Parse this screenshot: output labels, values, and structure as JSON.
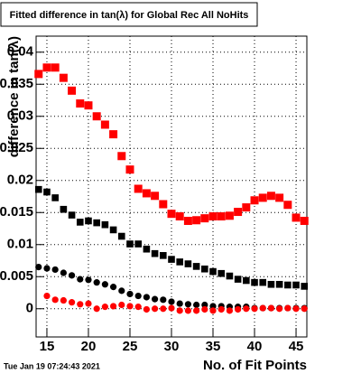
{
  "chart_data": {
    "type": "scatter",
    "title": "Fitted difference in tan(λ) for Global Rec All NoHits",
    "x_label": "No. of Fit Points",
    "y_label": "difference in tan(λ)",
    "footer": "Tue Jan 19 07:24:43 2021",
    "xlim": [
      13.7,
      46.3
    ],
    "xticks": [
      15,
      20,
      25,
      30,
      35,
      40,
      45
    ],
    "ylim": [
      -0.0044,
      0.0425
    ],
    "yticks": [
      0,
      0.005,
      0.01,
      0.015,
      0.02,
      0.025,
      0.03,
      0.035,
      0.04
    ],
    "grid": true,
    "series": [
      {
        "color": "#ff0000",
        "marker": "square",
        "x": [
          14,
          15,
          16,
          17,
          18,
          19,
          20,
          21,
          22,
          23,
          24,
          25,
          26,
          27,
          28,
          29,
          30,
          31,
          32,
          33,
          34,
          35,
          36,
          37,
          38,
          39,
          40,
          41,
          42,
          43,
          44,
          45,
          46
        ],
        "values": [
          0.0366,
          0.0376,
          0.0376,
          0.036,
          0.034,
          0.032,
          0.0317,
          0.03,
          0.0287,
          0.0272,
          0.0238,
          0.0217,
          0.0187,
          0.018,
          0.0176,
          0.0163,
          0.0148,
          0.0144,
          0.0137,
          0.0138,
          0.0141,
          0.0144,
          0.0144,
          0.0145,
          0.0151,
          0.0158,
          0.0169,
          0.0173,
          0.0176,
          0.0173,
          0.0162,
          0.0142,
          0.0137
        ]
      },
      {
        "color": "#000000",
        "marker": "square",
        "x": [
          14,
          15,
          16,
          17,
          18,
          19,
          20,
          21,
          22,
          23,
          24,
          25,
          26,
          27,
          28,
          29,
          30,
          31,
          32,
          33,
          34,
          35,
          36,
          37,
          38,
          39,
          40,
          41,
          42,
          43,
          44,
          45,
          46
        ],
        "values": [
          0.0186,
          0.0182,
          0.0173,
          0.0155,
          0.0146,
          0.0135,
          0.0137,
          0.0134,
          0.0131,
          0.0123,
          0.0113,
          0.0101,
          0.0101,
          0.0093,
          0.0086,
          0.0083,
          0.0077,
          0.0073,
          0.007,
          0.0066,
          0.0062,
          0.0058,
          0.0055,
          0.0051,
          0.0046,
          0.0044,
          0.0041,
          0.0041,
          0.0038,
          0.0038,
          0.0037,
          0.0037,
          0.0035
        ]
      },
      {
        "color": "#000000",
        "marker": "circle",
        "x": [
          14,
          15,
          16,
          17,
          18,
          19,
          20,
          21,
          22,
          23,
          24,
          25,
          26,
          27,
          28,
          29,
          30,
          31,
          32,
          33,
          34,
          35,
          36,
          37,
          38,
          39,
          40,
          41,
          42,
          43,
          44,
          45,
          46
        ],
        "values": [
          0.0065,
          0.0063,
          0.0061,
          0.0056,
          0.0052,
          0.0046,
          0.0045,
          0.0041,
          0.0038,
          0.0034,
          0.0028,
          0.0023,
          0.002,
          0.0018,
          0.0015,
          0.0014,
          0.0011,
          0.0008,
          0.0007,
          0.0006,
          0.0006,
          0.0004,
          0.0004,
          0.0003,
          0.0003,
          0.0003,
          0.0001,
          0.0001,
          0.0001,
          0.0001,
          0.0001,
          0.0001,
          0.0001
        ]
      },
      {
        "color": "#ff0000",
        "marker": "circle",
        "x": [
          15,
          16,
          17,
          18,
          19,
          20,
          21,
          22,
          23,
          24,
          25,
          26,
          27,
          28,
          29,
          30,
          31,
          32,
          33,
          34,
          35,
          36,
          37,
          38,
          39,
          40,
          41,
          42,
          43,
          44,
          45,
          46
        ],
        "values": [
          0.002,
          0.0014,
          0.0013,
          0.001,
          0.0007,
          0.0008,
          0,
          0.0003,
          0.0004,
          0.0006,
          0.0004,
          0.0003,
          -0.0001,
          0,
          0,
          0.0001,
          -0.0003,
          -0.0003,
          -0.0003,
          -0.0001,
          -0.0003,
          -0.0001,
          -0.0003,
          -0.0001,
          0,
          0,
          0.0001,
          0.0001,
          0,
          0.0001,
          0,
          0
        ]
      }
    ]
  }
}
